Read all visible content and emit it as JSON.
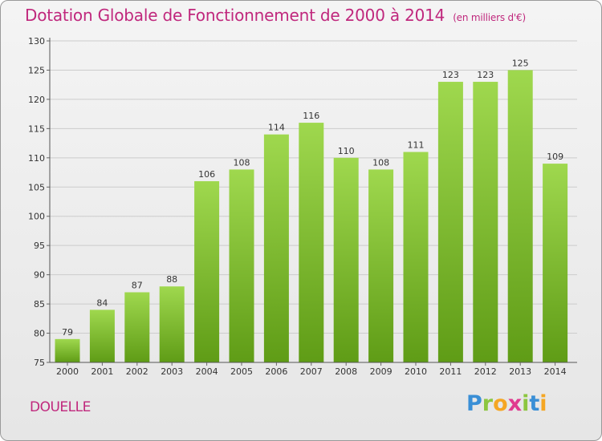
{
  "title": "Dotation Globale de Fonctionnement de 2000 à 2014",
  "subtitle": "(en milliers d'€)",
  "commune": "DOUELLE",
  "logo": {
    "letters": [
      "P",
      "r",
      "o",
      "x",
      "i",
      "t",
      "i"
    ],
    "colors": [
      "#3a8fd6",
      "#8cc63f",
      "#f5a623",
      "#e03a8f",
      "#8cc63f",
      "#3a8fd6",
      "#f5a623"
    ]
  },
  "colors": {
    "title": "#c0287d",
    "bar_light": "#9fd84e",
    "bar_dark": "#5f9c16",
    "grid": "#cccccc"
  },
  "chart_data": {
    "type": "bar",
    "categories": [
      "2000",
      "2001",
      "2002",
      "2003",
      "2004",
      "2005",
      "2006",
      "2007",
      "2008",
      "2009",
      "2010",
      "2011",
      "2012",
      "2013",
      "2014"
    ],
    "values": [
      79,
      84,
      87,
      88,
      106,
      108,
      114,
      116,
      110,
      108,
      111,
      123,
      123,
      125,
      109
    ],
    "ylim": [
      75,
      130
    ],
    "yticks": [
      75,
      80,
      85,
      90,
      95,
      100,
      105,
      110,
      115,
      120,
      125,
      130
    ],
    "grid": true,
    "legend": "none"
  }
}
